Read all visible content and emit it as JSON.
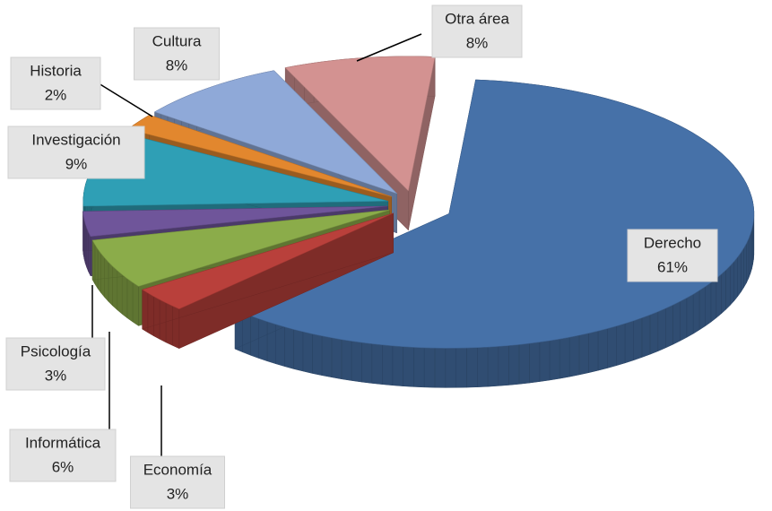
{
  "chart_data": {
    "type": "pie",
    "categories": [
      "Derecho",
      "Economía",
      "Informática",
      "Psicología",
      "Investigación",
      "Historia",
      "Cultura",
      "Otra área"
    ],
    "values": [
      61,
      3,
      6,
      3,
      9,
      2,
      8,
      8
    ],
    "value_labels": [
      "61%",
      "3%",
      "6%",
      "3%",
      "9%",
      "2%",
      "8%",
      "8%"
    ],
    "colors": [
      "#4671a8",
      "#b9403b",
      "#8bac4a",
      "#6f559a",
      "#2f9fb5",
      "#e2872e",
      "#8fa9d8",
      "#d39291"
    ]
  }
}
